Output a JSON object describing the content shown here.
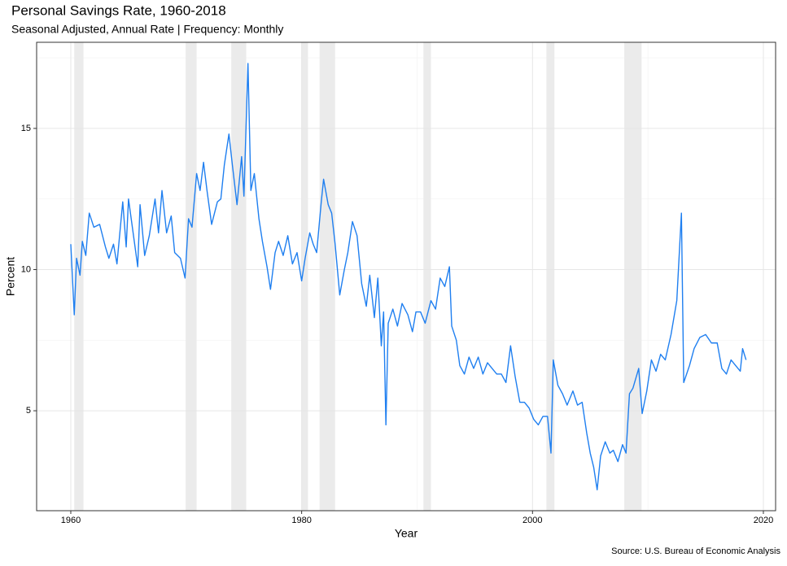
{
  "chart_data": {
    "type": "line",
    "title": "Personal Savings Rate, 1960-2018",
    "subtitle": "Seasonal Adjusted, Annual Rate | Frequency: Monthly",
    "x_label": "Year",
    "y_label": "Percent",
    "caption": "Source: U.S. Bureau of Economic Analysis",
    "color": "#1f7ff0",
    "recessions": [
      [
        1960.3,
        1961.1
      ],
      [
        1969.95,
        1970.9
      ],
      [
        1973.9,
        1975.2
      ],
      [
        1980.0,
        1980.55
      ],
      [
        1981.55,
        1982.9
      ],
      [
        1990.55,
        1991.2
      ],
      [
        2001.2,
        2001.9
      ],
      [
        2007.95,
        2009.45
      ]
    ],
    "recession_color": "#ebebeb",
    "xlim": [
      1957.04,
      2021.06
    ],
    "xticks": [
      1960,
      1980,
      2000,
      2020
    ],
    "xminor": [
      1970,
      1990,
      2010
    ],
    "ylim": [
      1.46,
      18.05
    ],
    "yticks": [
      5,
      10,
      15
    ],
    "yminor": [
      7.5,
      12.5,
      17.5
    ],
    "grid": true,
    "x": [
      1960.0,
      1960.3,
      1960.5,
      1960.8,
      1961.0,
      1961.3,
      1961.6,
      1962.0,
      1962.5,
      1963.0,
      1963.3,
      1963.7,
      1964.0,
      1964.5,
      1964.8,
      1965.0,
      1965.5,
      1965.8,
      1966.0,
      1966.4,
      1966.8,
      1967.3,
      1967.6,
      1967.9,
      1968.3,
      1968.7,
      1969.0,
      1969.5,
      1969.9,
      1970.2,
      1970.5,
      1970.9,
      1971.2,
      1971.5,
      1971.8,
      1972.2,
      1972.7,
      1973.0,
      1973.3,
      1973.7,
      1974.0,
      1974.4,
      1974.8,
      1975.0,
      1975.35,
      1975.6,
      1975.9,
      1976.3,
      1976.6,
      1977.0,
      1977.3,
      1977.7,
      1978.0,
      1978.4,
      1978.8,
      1979.2,
      1979.6,
      1980.0,
      1980.3,
      1980.7,
      1981.0,
      1981.3,
      1981.7,
      1981.9,
      1982.3,
      1982.6,
      1982.9,
      1983.3,
      1983.7,
      1984.0,
      1984.4,
      1984.8,
      1985.2,
      1985.6,
      1985.9,
      1986.3,
      1986.6,
      1986.9,
      1987.1,
      1987.3,
      1987.5,
      1987.9,
      1988.3,
      1988.7,
      1989.2,
      1989.6,
      1989.9,
      1990.3,
      1990.7,
      1991.2,
      1991.6,
      1992.0,
      1992.4,
      1992.8,
      1993.0,
      1993.4,
      1993.7,
      1994.1,
      1994.5,
      1994.9,
      1995.3,
      1995.7,
      1996.1,
      1996.5,
      1996.9,
      1997.3,
      1997.7,
      1998.1,
      1998.5,
      1998.9,
      1999.3,
      1999.7,
      2000.1,
      2000.5,
      2000.9,
      2001.3,
      2001.6,
      2001.8,
      2002.2,
      2002.6,
      2003.0,
      2003.5,
      2003.9,
      2004.3,
      2004.7,
      2005.0,
      2005.3,
      2005.6,
      2005.9,
      2006.3,
      2006.7,
      2007.0,
      2007.4,
      2007.8,
      2008.1,
      2008.4,
      2008.7,
      2009.2,
      2009.5,
      2009.9,
      2010.3,
      2010.7,
      2011.1,
      2011.5,
      2012.0,
      2012.5,
      2012.9,
      2013.1,
      2013.6,
      2014.0,
      2014.5,
      2015.0,
      2015.5,
      2016.0,
      2016.4,
      2016.8,
      2017.2,
      2017.6,
      2018.0,
      2018.2,
      2018.5
    ],
    "values": [
      10.9,
      8.4,
      10.4,
      9.8,
      11.0,
      10.5,
      12.0,
      11.5,
      11.6,
      10.8,
      10.4,
      10.9,
      10.2,
      12.4,
      10.8,
      12.5,
      11.0,
      10.1,
      12.3,
      10.5,
      11.2,
      12.5,
      11.3,
      12.8,
      11.3,
      11.9,
      10.6,
      10.4,
      9.7,
      11.8,
      11.5,
      13.4,
      12.8,
      13.8,
      12.8,
      11.6,
      12.4,
      12.5,
      13.7,
      14.8,
      13.7,
      12.3,
      14.0,
      12.6,
      17.3,
      12.8,
      13.4,
      11.8,
      11.0,
      10.1,
      9.3,
      10.6,
      11.0,
      10.5,
      11.2,
      10.2,
      10.6,
      9.6,
      10.4,
      11.3,
      10.9,
      10.6,
      12.4,
      13.2,
      12.3,
      12.0,
      10.9,
      9.1,
      10.0,
      10.6,
      11.7,
      11.2,
      9.5,
      8.7,
      9.8,
      8.3,
      9.7,
      7.3,
      8.5,
      4.5,
      8.1,
      8.6,
      8.0,
      8.8,
      8.4,
      7.8,
      8.5,
      8.5,
      8.1,
      8.9,
      8.6,
      9.7,
      9.4,
      10.1,
      8.0,
      7.5,
      6.6,
      6.3,
      6.9,
      6.5,
      6.9,
      6.3,
      6.7,
      6.5,
      6.3,
      6.3,
      6.0,
      7.3,
      6.2,
      5.3,
      5.3,
      5.1,
      4.7,
      4.5,
      4.8,
      4.8,
      3.5,
      6.8,
      5.9,
      5.6,
      5.2,
      5.7,
      5.2,
      5.3,
      4.2,
      3.5,
      3.0,
      2.2,
      3.4,
      3.9,
      3.5,
      3.6,
      3.2,
      3.8,
      3.5,
      5.6,
      5.8,
      6.5,
      4.9,
      5.7,
      6.8,
      6.4,
      7.0,
      6.8,
      7.7,
      8.9,
      12.0,
      6.0,
      6.6,
      7.2,
      7.6,
      7.7,
      7.4,
      7.4,
      6.5,
      6.3,
      6.8,
      6.6,
      6.4,
      7.2,
      6.8
    ]
  }
}
